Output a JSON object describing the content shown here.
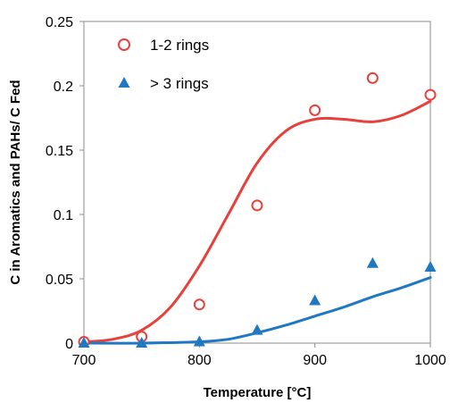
{
  "chart_data": {
    "type": "scatter",
    "title": "",
    "xlabel": "Temperature [°C]",
    "ylabel": "C in  Aromatics  and PAHs/ C Fed",
    "xlim": [
      700,
      1000
    ],
    "ylim": [
      0,
      0.25
    ],
    "x_ticks": [
      700,
      800,
      900,
      1000
    ],
    "y_ticks": [
      0,
      0.05,
      0.1,
      0.15,
      0.2,
      0.25
    ],
    "x_tick_labels": [
      "700",
      "800",
      "900",
      "1000"
    ],
    "y_tick_labels": [
      "0",
      "0.05",
      "0.1",
      "0.15",
      "0.2",
      "0.25"
    ],
    "grid": false,
    "legend_position": "top-left",
    "series": [
      {
        "name": "1-2 rings",
        "marker": "open-circle",
        "color": "#e8403a",
        "points": [
          {
            "x": 700,
            "y": 0.001
          },
          {
            "x": 750,
            "y": 0.005
          },
          {
            "x": 800,
            "y": 0.03
          },
          {
            "x": 850,
            "y": 0.107
          },
          {
            "x": 900,
            "y": 0.181
          },
          {
            "x": 950,
            "y": 0.206
          },
          {
            "x": 1000,
            "y": 0.193
          }
        ],
        "fit_line": [
          {
            "x": 700,
            "y": 0.001
          },
          {
            "x": 725,
            "y": 0.003
          },
          {
            "x": 750,
            "y": 0.01
          },
          {
            "x": 775,
            "y": 0.028
          },
          {
            "x": 800,
            "y": 0.06
          },
          {
            "x": 825,
            "y": 0.1
          },
          {
            "x": 850,
            "y": 0.14
          },
          {
            "x": 875,
            "y": 0.165
          },
          {
            "x": 900,
            "y": 0.174
          },
          {
            "x": 925,
            "y": 0.174
          },
          {
            "x": 950,
            "y": 0.172
          },
          {
            "x": 975,
            "y": 0.177
          },
          {
            "x": 1000,
            "y": 0.188
          }
        ]
      },
      {
        "name": "> 3 rings",
        "marker": "filled-triangle",
        "color": "#1f78c1",
        "points": [
          {
            "x": 700,
            "y": 0.0
          },
          {
            "x": 750,
            "y": 0.0
          },
          {
            "x": 800,
            "y": 0.001
          },
          {
            "x": 850,
            "y": 0.01
          },
          {
            "x": 900,
            "y": 0.033
          },
          {
            "x": 950,
            "y": 0.062
          },
          {
            "x": 1000,
            "y": 0.059
          }
        ],
        "fit_line": [
          {
            "x": 700,
            "y": 0.0
          },
          {
            "x": 750,
            "y": 0.0
          },
          {
            "x": 800,
            "y": 0.001
          },
          {
            "x": 825,
            "y": 0.003
          },
          {
            "x": 850,
            "y": 0.008
          },
          {
            "x": 875,
            "y": 0.014
          },
          {
            "x": 900,
            "y": 0.021
          },
          {
            "x": 925,
            "y": 0.028
          },
          {
            "x": 950,
            "y": 0.036
          },
          {
            "x": 975,
            "y": 0.043
          },
          {
            "x": 1000,
            "y": 0.051
          }
        ]
      }
    ]
  }
}
